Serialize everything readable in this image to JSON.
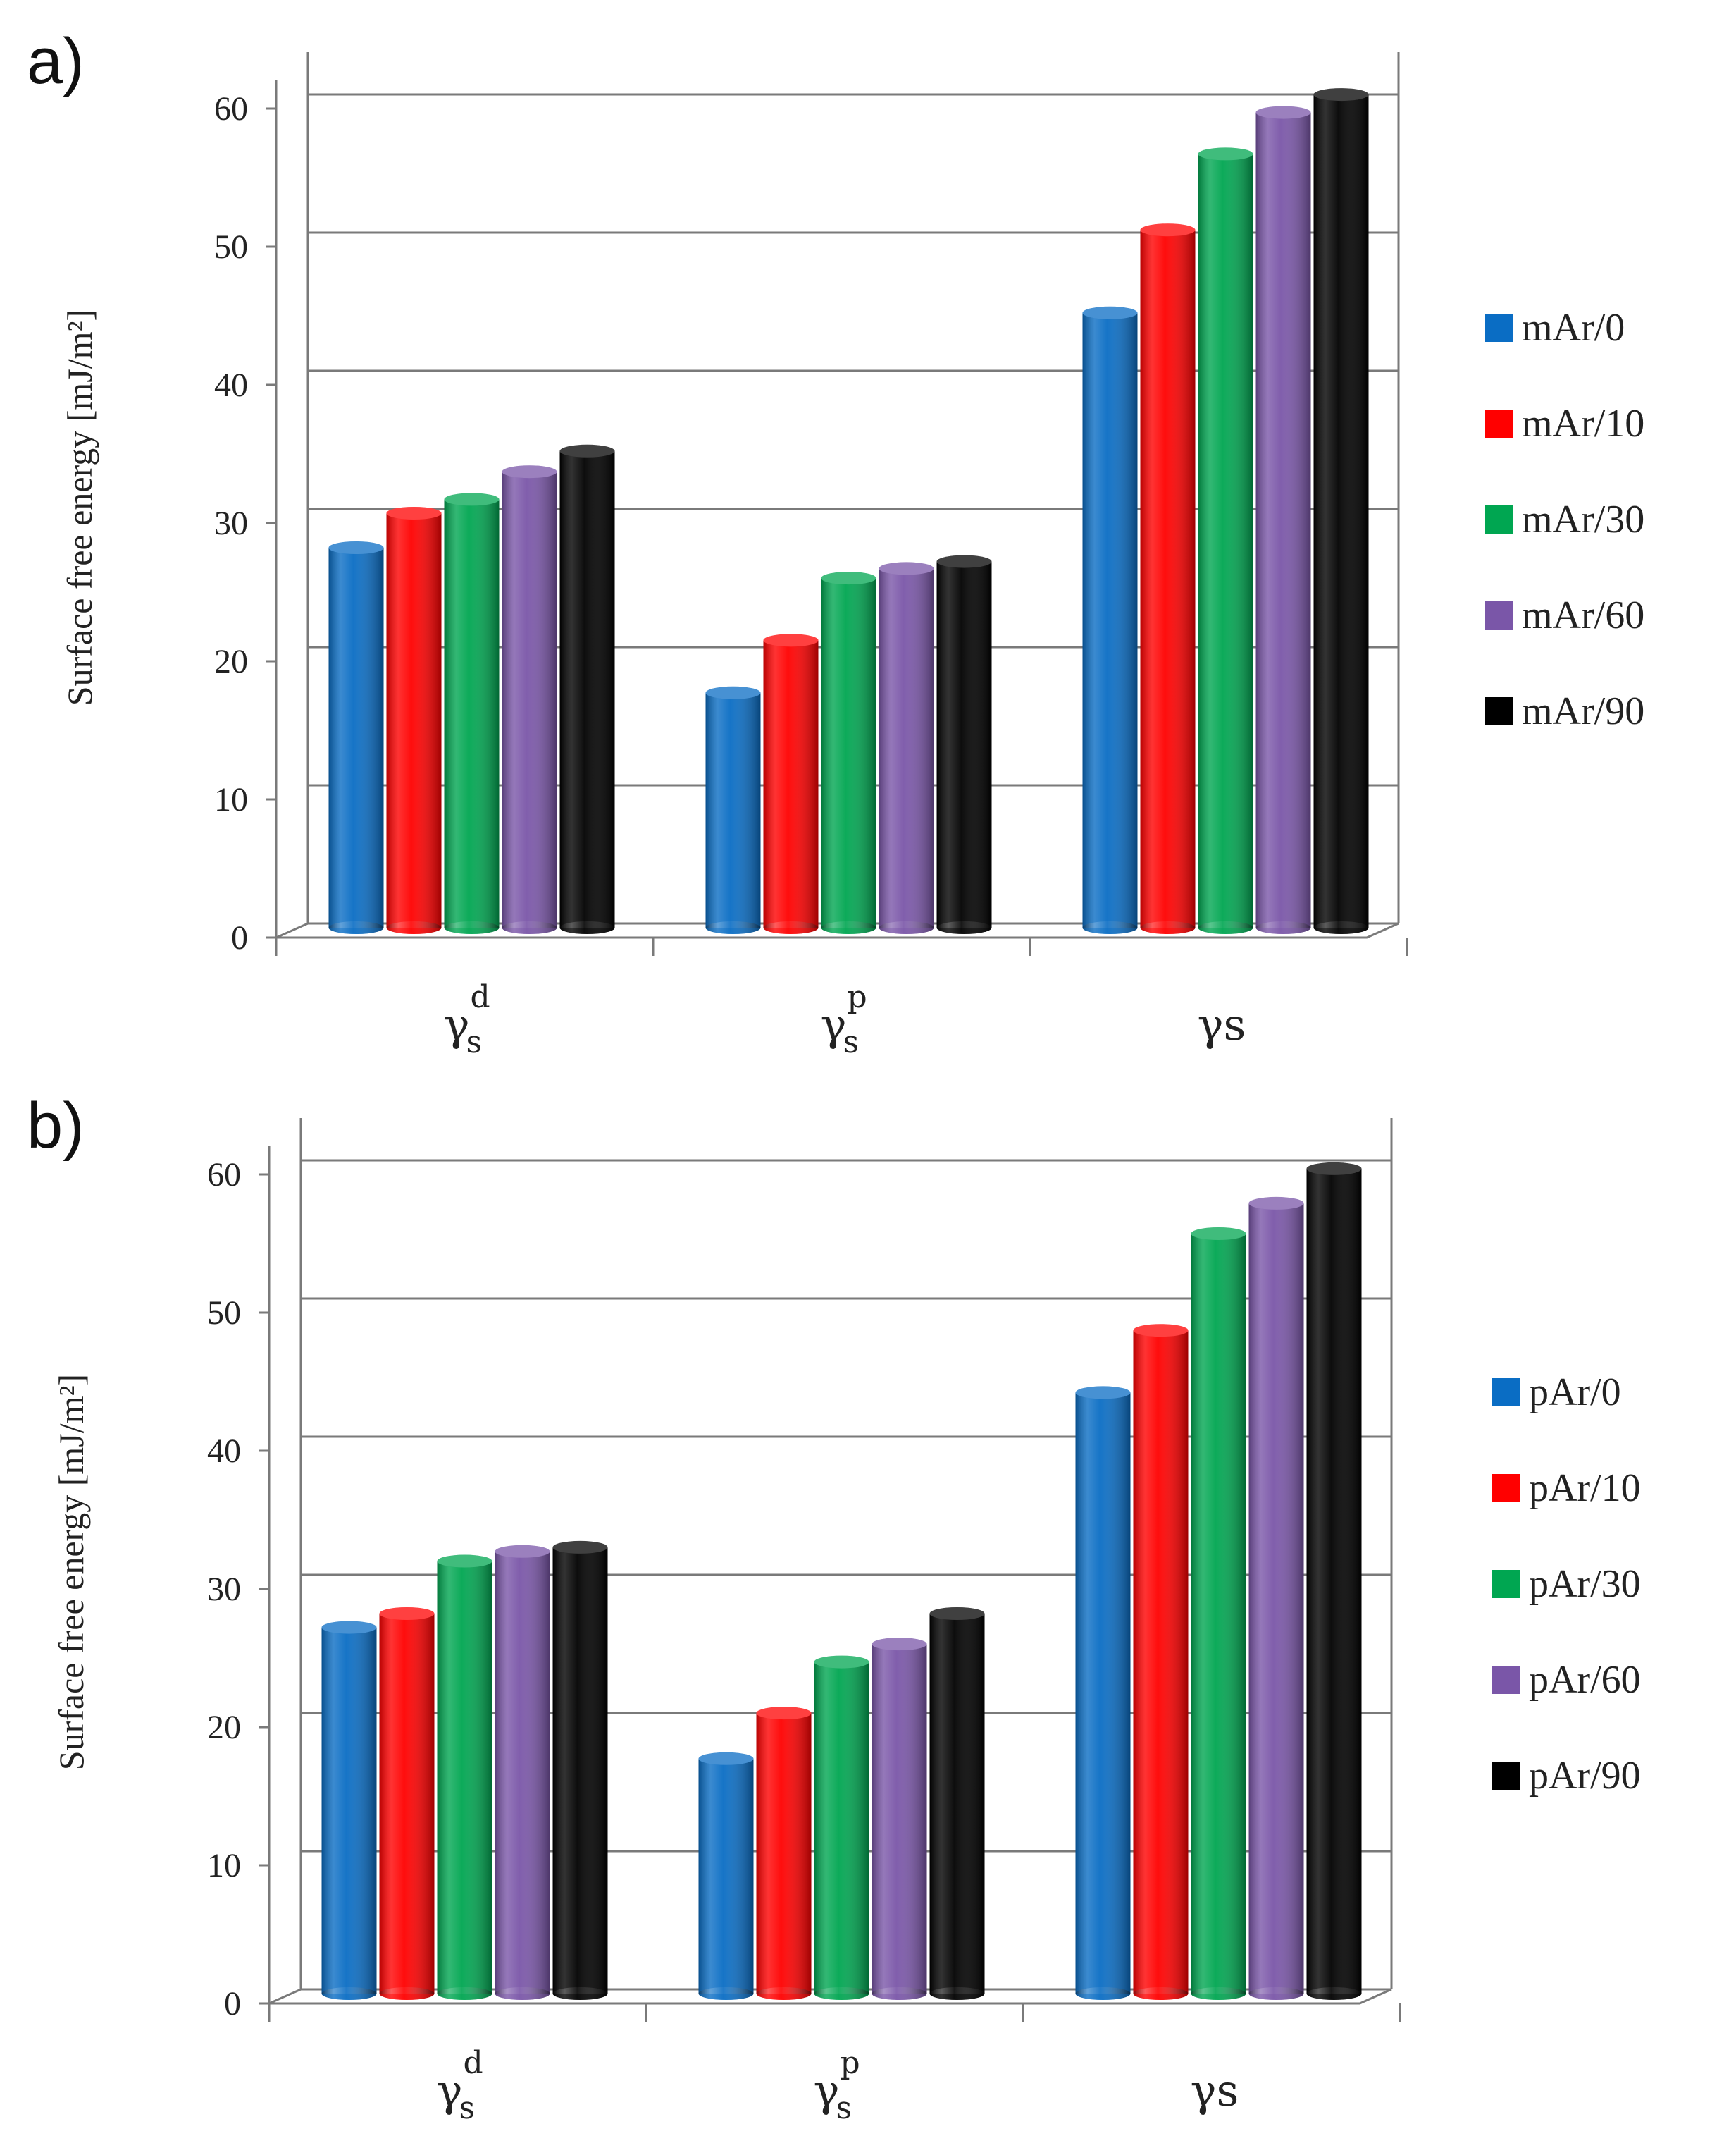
{
  "chart_data": [
    {
      "type": "bar",
      "panel": "a)",
      "title": "",
      "ylabel": "Surface free energy [mJ/m²]",
      "xlabel": "",
      "ylim": [
        0,
        60
      ],
      "yticks": [
        "0",
        "10",
        "20",
        "30",
        "40",
        "50",
        "60"
      ],
      "grid": true,
      "legend_position": "right",
      "categories": [
        {
          "base": "γ",
          "sub": "s",
          "sup": "d"
        },
        {
          "base": "γ",
          "sub": "s",
          "sup": "p"
        },
        {
          "base": "γs",
          "sub": "",
          "sup": ""
        }
      ],
      "series": [
        {
          "name": "mAr/0",
          "color": "#0a6dc4",
          "values": [
            27.5,
            17,
            44.5
          ]
        },
        {
          "name": "mAr/10",
          "color": "#ff0000",
          "values": [
            30,
            20.8,
            50.5
          ]
        },
        {
          "name": "mAr/30",
          "color": "#00a651",
          "values": [
            31,
            25.3,
            56
          ]
        },
        {
          "name": "mAr/60",
          "color": "#7a56a8",
          "values": [
            33,
            26,
            59
          ]
        },
        {
          "name": "mAr/90",
          "color": "#000000",
          "values": [
            34.5,
            26.5,
            60.3
          ]
        }
      ]
    },
    {
      "type": "bar",
      "panel": "b)",
      "title": "",
      "ylabel": "Surface free energy [mJ/m²]",
      "xlabel": "",
      "ylim": [
        0,
        60
      ],
      "yticks": [
        "0",
        "10",
        "20",
        "30",
        "40",
        "50",
        "60"
      ],
      "grid": true,
      "legend_position": "right",
      "categories": [
        {
          "base": "γ",
          "sub": "s",
          "sup": "d"
        },
        {
          "base": "γ",
          "sub": "s",
          "sup": "p"
        },
        {
          "base": "γs",
          "sub": "",
          "sup": ""
        }
      ],
      "series": [
        {
          "name": "pAr/0",
          "color": "#0a6dc4",
          "values": [
            26.5,
            17,
            43.5
          ]
        },
        {
          "name": "pAr/10",
          "color": "#ff0000",
          "values": [
            27.5,
            20.3,
            48
          ]
        },
        {
          "name": "pAr/30",
          "color": "#00a651",
          "values": [
            31.3,
            24,
            55
          ]
        },
        {
          "name": "pAr/60",
          "color": "#7a56a8",
          "values": [
            32,
            25.3,
            57.2
          ]
        },
        {
          "name": "pAr/90",
          "color": "#000000",
          "values": [
            32.3,
            27.5,
            59.7
          ]
        }
      ]
    }
  ]
}
